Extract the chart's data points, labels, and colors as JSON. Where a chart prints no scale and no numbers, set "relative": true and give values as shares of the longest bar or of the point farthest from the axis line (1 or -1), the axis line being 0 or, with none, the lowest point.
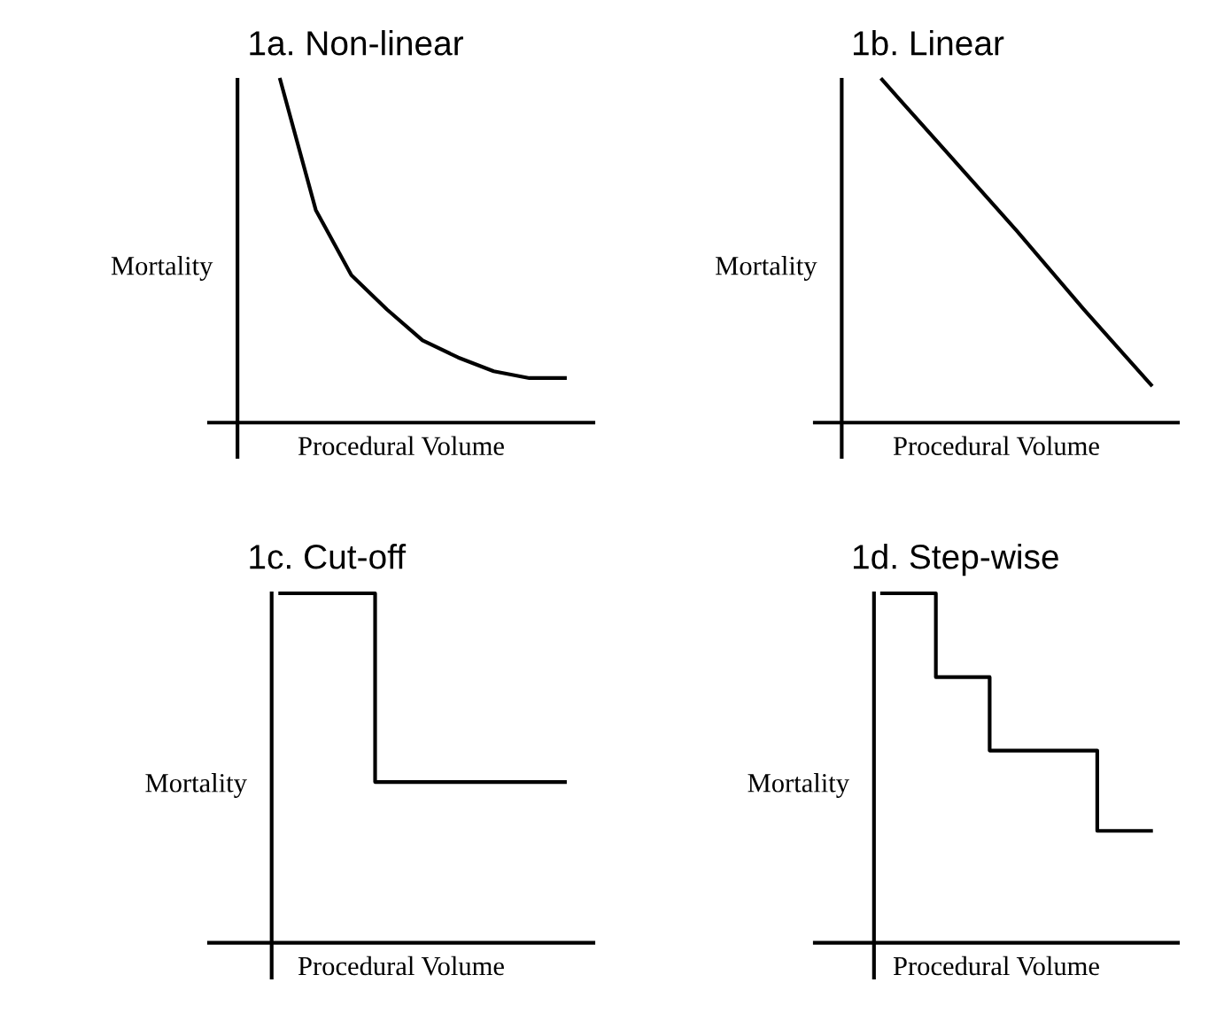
{
  "chart_data": [
    {
      "type": "line",
      "title": "1a. Non-linear",
      "xlabel": "Procedural Volume",
      "ylabel": "Mortality",
      "relative": true,
      "color": "#000000",
      "categories": [
        null,
        null,
        null,
        null,
        null,
        null,
        null,
        null,
        null
      ],
      "values": [
        1,
        0.62,
        0.43,
        0.33,
        0.24,
        0.19,
        0.15,
        0.13,
        0.13
      ]
    },
    {
      "type": "line",
      "title": "1b. Linear",
      "xlabel": "Procedural Volume",
      "ylabel": "Mortality",
      "relative": true,
      "color": "#000000",
      "categories": [
        null,
        null,
        null,
        null,
        null
      ],
      "values": [
        1,
        0.78,
        0.56,
        0.33,
        0.11
      ]
    },
    {
      "type": "step",
      "title": "1c. Cut-off",
      "xlabel": "Procedural Volume",
      "ylabel": "Mortality",
      "relative": true,
      "color": "#000000",
      "categories": [
        null,
        null,
        null,
        null
      ],
      "values": [
        1,
        0.46,
        0.46,
        0.46
      ]
    },
    {
      "type": "step",
      "title": "1d. Step-wise",
      "xlabel": "Procedural Volume",
      "ylabel": "Mortality",
      "relative": true,
      "color": "#000000",
      "categories": [
        null,
        null,
        null,
        null,
        null,
        null,
        null,
        null,
        null,
        null,
        null
      ],
      "values": [
        1,
        1,
        0.76,
        0.76,
        0.55,
        0.55,
        0.55,
        0.55,
        0.32,
        0.32,
        0.32
      ]
    }
  ]
}
